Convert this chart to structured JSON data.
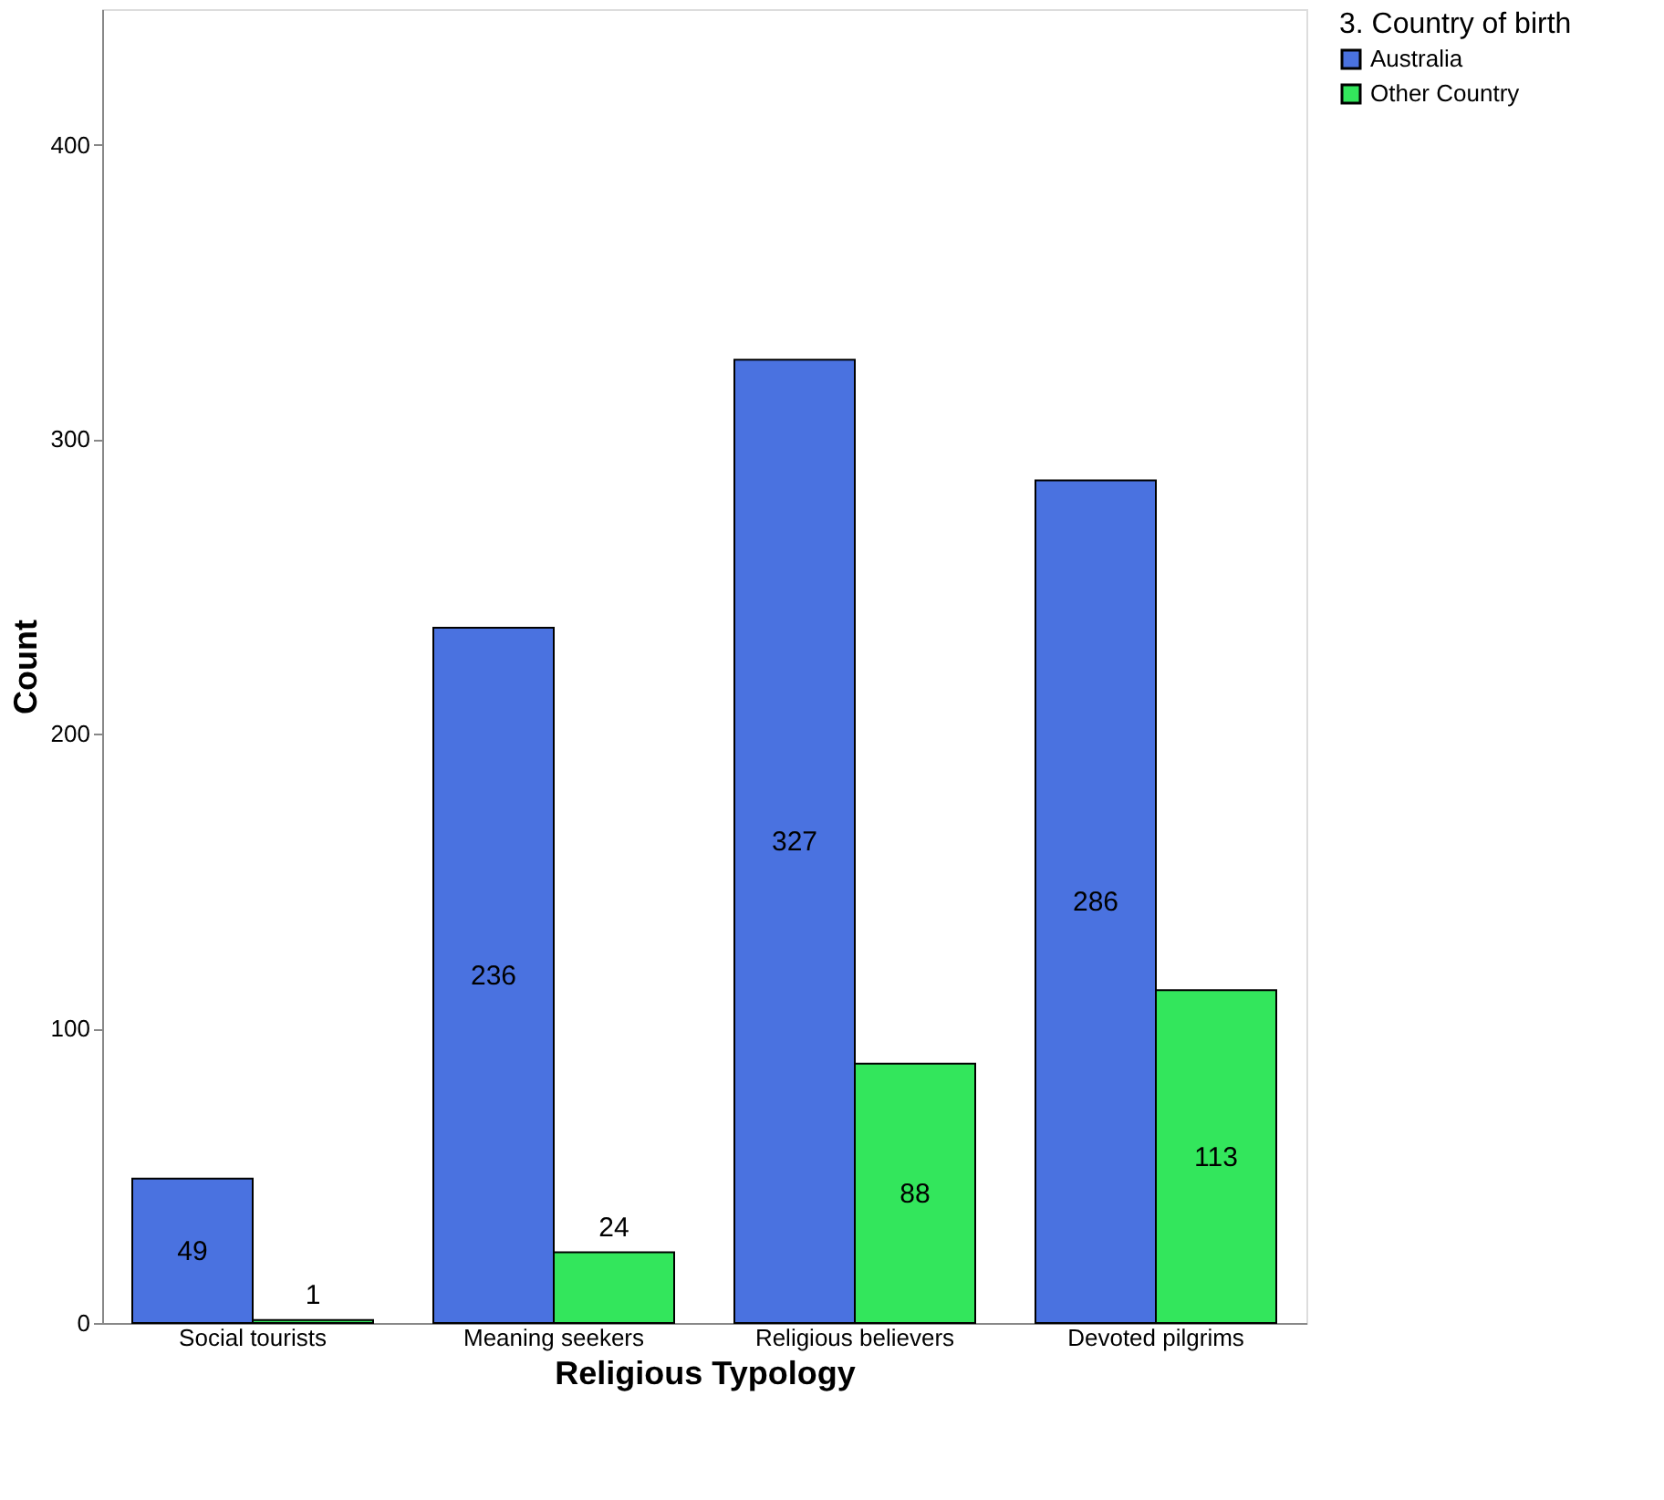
{
  "chart_data": {
    "type": "bar",
    "xlabel": "Religious Typology",
    "ylabel": "Count",
    "legend_title": "3. Country of birth",
    "categories": [
      "Social tourists",
      "Meaning seekers",
      "Religious believers",
      "Devoted pilgrims"
    ],
    "series": [
      {
        "name": "Australia",
        "color": "#4a72e0",
        "values": [
          49,
          236,
          327,
          286
        ]
      },
      {
        "name": "Other Country",
        "color": "#33e65c",
        "values": [
          1,
          24,
          88,
          113
        ]
      }
    ],
    "ylim": [
      0,
      446
    ],
    "yticks": [
      0,
      100,
      200,
      300,
      400
    ],
    "grid": false,
    "legend": "top right",
    "data_labels": true
  }
}
